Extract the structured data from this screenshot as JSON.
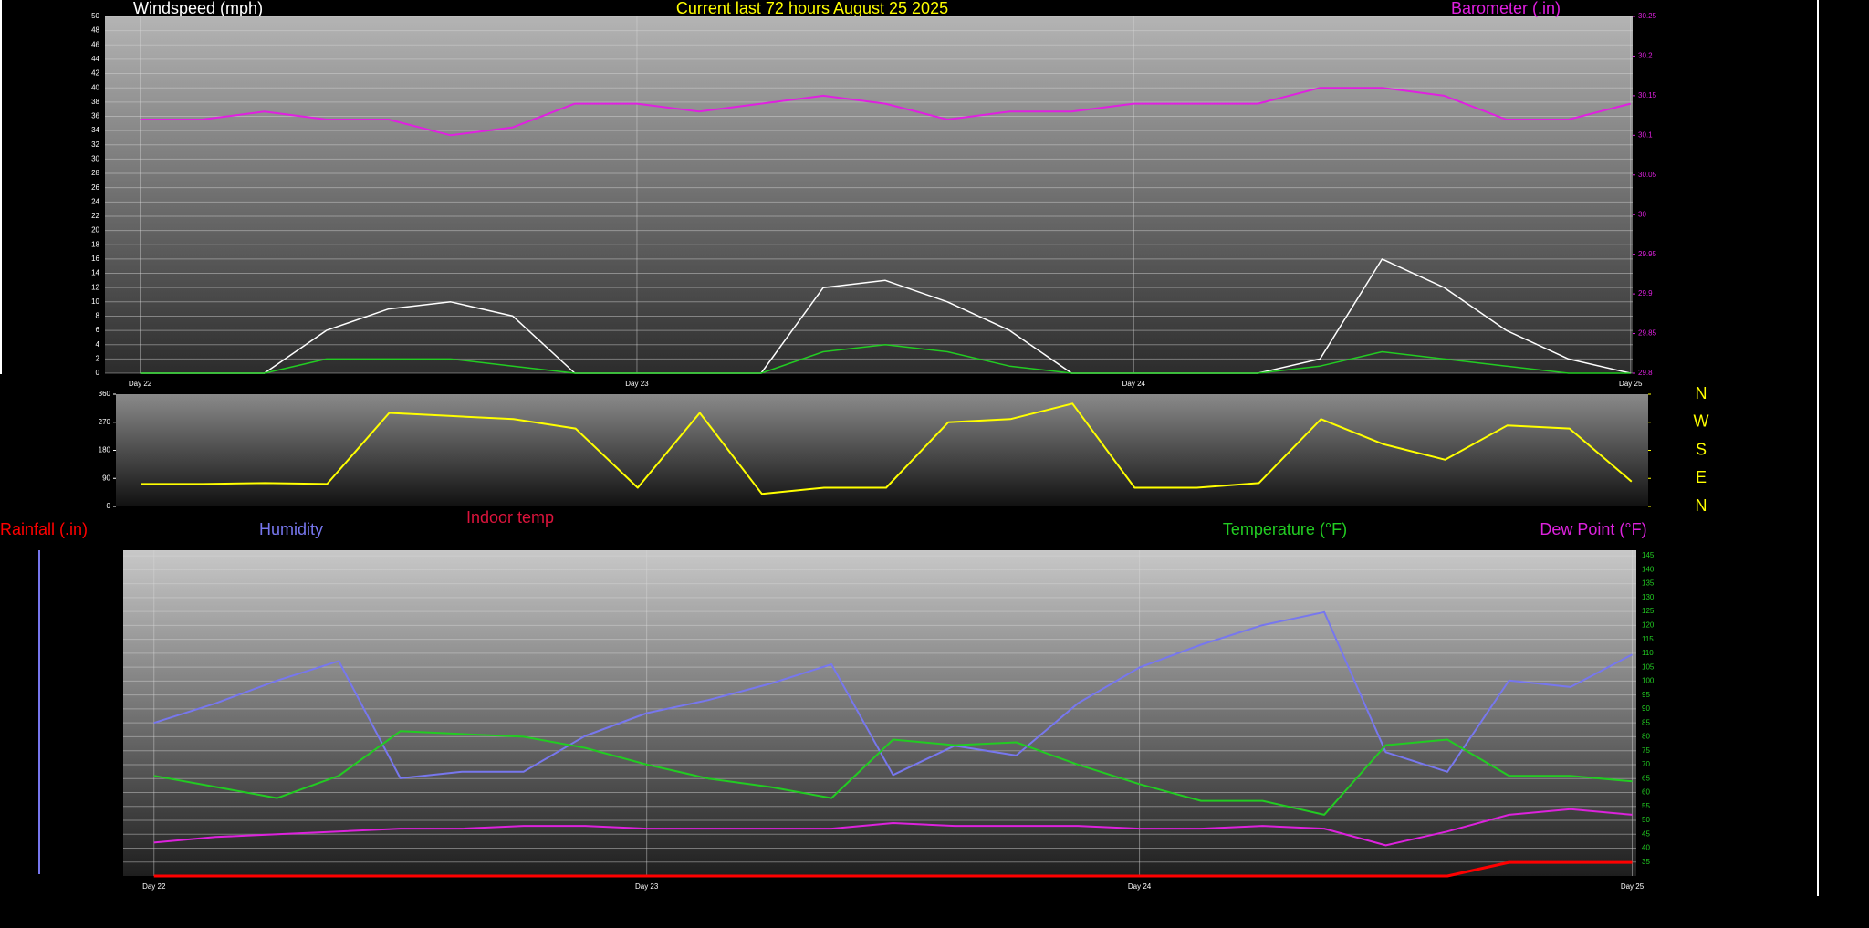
{
  "chart_data": [
    {
      "type": "line",
      "title": "Current last 72 hours August 25 2025",
      "ylabel": "Windspeed (mph)",
      "x": [
        0,
        3,
        6,
        9,
        12,
        15,
        18,
        21,
        24,
        27,
        30,
        33,
        36,
        39,
        42,
        45,
        48,
        51,
        54,
        57,
        60,
        63,
        66,
        69,
        72
      ],
      "xlim": [
        -1.7,
        72.1
      ],
      "xticks": [
        {
          "value": 0,
          "label": "Day 22"
        },
        {
          "value": 24,
          "label": "Day 23"
        },
        {
          "value": 48,
          "label": "Day 24"
        },
        {
          "value": 72,
          "label": "Day 25"
        }
      ],
      "ylim": [
        0,
        50
      ],
      "yticks": [
        0,
        2,
        4,
        6,
        8,
        10,
        12,
        14,
        16,
        18,
        20,
        22,
        24,
        26,
        28,
        30,
        32,
        34,
        36,
        38,
        40,
        42,
        44,
        46,
        48,
        50
      ],
      "y2lim": [
        29.8,
        30.25
      ],
      "y2ticks": [
        29.8,
        29.85,
        29.9,
        29.95,
        30,
        30.05,
        30.1,
        30.15,
        30.2,
        30.25
      ],
      "grid": true,
      "series": [
        {
          "color": "#ffffff",
          "values": [
            0,
            0,
            0,
            6,
            9,
            10,
            8,
            0,
            0,
            0,
            0,
            12,
            13,
            10,
            6,
            0,
            0,
            0,
            0,
            2,
            16,
            12,
            6,
            2,
            0
          ]
        },
        {
          "color": "#22cc22",
          "values": [
            0,
            0,
            0,
            2,
            2,
            2,
            1,
            0,
            0,
            0,
            0,
            3,
            4,
            3,
            1,
            0,
            0,
            0,
            0,
            1,
            3,
            2,
            1,
            0,
            0
          ]
        },
        {
          "name": "Barometer (.in)",
          "color": "#e020e0",
          "axis": "y2",
          "values": [
            30.12,
            30.12,
            30.13,
            30.12,
            30.12,
            30.1,
            30.11,
            30.14,
            30.14,
            30.13,
            30.14,
            30.15,
            30.14,
            30.12,
            30.13,
            30.13,
            30.14,
            30.14,
            30.14,
            30.16,
            30.16,
            30.15,
            30.12,
            30.12,
            30.14
          ]
        }
      ]
    },
    {
      "type": "line",
      "x": [
        0,
        3,
        6,
        9,
        12,
        15,
        18,
        21,
        24,
        27,
        30,
        33,
        36,
        39,
        42,
        45,
        48,
        51,
        54,
        57,
        60,
        63,
        66,
        69,
        72
      ],
      "xlim": [
        -1.2,
        72.8
      ],
      "ylim": [
        0,
        360
      ],
      "yticks": [
        0,
        90,
        180,
        270,
        360
      ],
      "y2lim": [
        0,
        360
      ],
      "y2ticks": [
        {
          "value": 360,
          "label": "N"
        },
        {
          "value": 270,
          "label": "W"
        },
        {
          "value": 180,
          "label": "S"
        },
        {
          "value": 90,
          "label": "E"
        },
        {
          "value": 0,
          "label": "N"
        }
      ],
      "series": [
        {
          "color": "#ffff00",
          "values": [
            72,
            72,
            75,
            72,
            300,
            290,
            280,
            250,
            60,
            300,
            40,
            60,
            60,
            270,
            280,
            330,
            60,
            60,
            75,
            280,
            200,
            150,
            260,
            250,
            80
          ]
        }
      ]
    },
    {
      "type": "line",
      "annotations": [
        "Indoor temp"
      ],
      "x": [
        0,
        3,
        6,
        9,
        12,
        15,
        18,
        21,
        24,
        27,
        30,
        33,
        36,
        39,
        42,
        45,
        48,
        51,
        54,
        57,
        60,
        63,
        66,
        69,
        72
      ],
      "xlim": [
        -1.5,
        72.2
      ],
      "xticks": [
        {
          "value": 0,
          "label": "Day 22"
        },
        {
          "value": 24,
          "label": "Day 23"
        },
        {
          "value": 48,
          "label": "Day 24"
        },
        {
          "value": 72,
          "label": "Day 25"
        }
      ],
      "ylim": [
        30,
        147
      ],
      "yticks": [
        35,
        40,
        45,
        50,
        55,
        60,
        65,
        70,
        75,
        80,
        85,
        90,
        95,
        100,
        105,
        110,
        115,
        120,
        125,
        130,
        135,
        140,
        145
      ],
      "y2lim": [
        0,
        100
      ],
      "y3lim": [
        0,
        1.2
      ],
      "grid": true,
      "series": [
        {
          "name": "Rainfall (.in)",
          "color": "#ff0000",
          "axis": "y3",
          "values": [
            0,
            0,
            0,
            0,
            0,
            0,
            0,
            0,
            0,
            0,
            0,
            0,
            0,
            0,
            0,
            0,
            0,
            0,
            0,
            0,
            0,
            0,
            0.05,
            0.05,
            0.05
          ]
        },
        {
          "name": "Humidity",
          "color": "#7777ee",
          "axis": "y2",
          "values": [
            47,
            53,
            60,
            66,
            30,
            32,
            32,
            43,
            50,
            54,
            59,
            65,
            31,
            40,
            37,
            53,
            64,
            71,
            77,
            81,
            38,
            32,
            60,
            58,
            68
          ]
        },
        {
          "name": "Temperature (°F)",
          "color": "#22cc22",
          "values": [
            66,
            62,
            58,
            66,
            82,
            81,
            80,
            76,
            70,
            65,
            62,
            58,
            79,
            77,
            78,
            70,
            63,
            57,
            57,
            52,
            77,
            79,
            66,
            66,
            64
          ]
        },
        {
          "name": "Dew Point (°F)",
          "color": "#dd22dd",
          "values": [
            42,
            44,
            45,
            46,
            47,
            47,
            48,
            48,
            47,
            47,
            47,
            47,
            49,
            48,
            48,
            48,
            47,
            47,
            48,
            47,
            41,
            46,
            52,
            54,
            52
          ]
        }
      ]
    }
  ]
}
